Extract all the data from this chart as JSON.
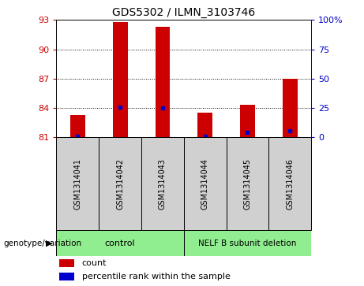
{
  "title": "GDS5302 / ILMN_3103746",
  "samples": [
    "GSM1314041",
    "GSM1314042",
    "GSM1314043",
    "GSM1314044",
    "GSM1314045",
    "GSM1314046"
  ],
  "counts": [
    83.3,
    92.8,
    92.3,
    83.5,
    84.3,
    87.0
  ],
  "percentiles": [
    0.5,
    25.5,
    25.0,
    0.5,
    4.5,
    5.5
  ],
  "ymin": 81,
  "ymax": 93,
  "yticks": [
    81,
    84,
    87,
    90,
    93
  ],
  "y2ticks": [
    0,
    25,
    50,
    75,
    100
  ],
  "y2labels": [
    "0",
    "25",
    "50",
    "75",
    "100%"
  ],
  "bar_color": "#cc0000",
  "dot_color": "#0000cc",
  "control_label": "control",
  "deletion_label": "NELF B subunit deletion",
  "group_color": "#90ee90",
  "group_label": "genotype/variation",
  "legend_count": "count",
  "legend_percentile": "percentile rank within the sample",
  "bar_width": 0.35,
  "axis_left_color": "#cc0000",
  "axis_right_color": "#0000cc",
  "label_box_color": "#d0d0d0",
  "title_fontsize": 10
}
